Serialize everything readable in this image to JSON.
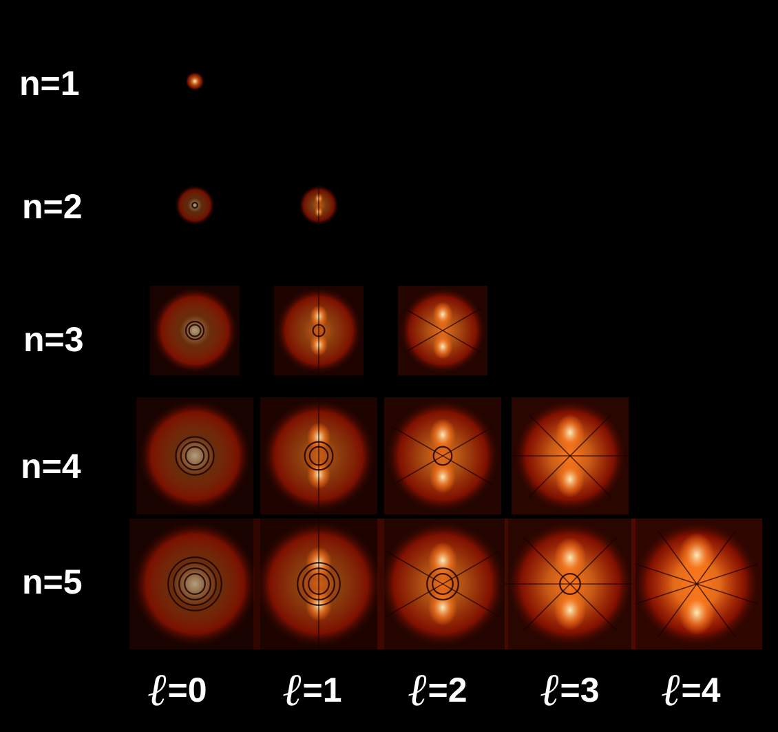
{
  "rows": [
    {
      "label": "n=1",
      "n": 1
    },
    {
      "label": "n=2",
      "n": 2
    },
    {
      "label": "n=3",
      "n": 3
    },
    {
      "label": "n=4",
      "n": 4
    },
    {
      "label": "n=5",
      "n": 5
    }
  ],
  "columns": [
    {
      "symbol": "ℓ",
      "text": "=0",
      "l": 0
    },
    {
      "symbol": "ℓ",
      "text": "=1",
      "l": 1
    },
    {
      "symbol": "ℓ",
      "text": "=2",
      "l": 2
    },
    {
      "symbol": "ℓ",
      "text": "=3",
      "l": 3
    },
    {
      "symbol": "ℓ",
      "text": "=4",
      "l": 4
    }
  ],
  "colors": {
    "background": "#000000",
    "glow_core": "#fff6c8",
    "glow_mid": "#ff7a1e",
    "glow_outer": "#c81a00",
    "node_line": "#1a0000"
  }
}
